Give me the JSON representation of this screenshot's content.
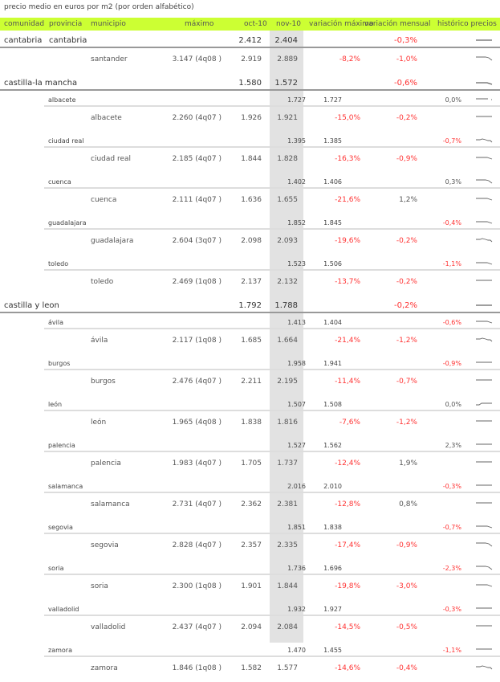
{
  "title": "precio medio en euros por m2 (por orden alfabético)",
  "colors": {
    "header_bg": "#ccff33",
    "negative": "#ff3333",
    "shade": "#e2e2e2"
  },
  "columns": {
    "comunidad": "comunidad",
    "provincia": "provincia",
    "municipio": "municipio",
    "maximo": "máximo",
    "oct": "oct-10",
    "nov": "nov-10",
    "var_max": "variación máximo",
    "var_mensual": "variación mensual",
    "historico": "histórico precios"
  },
  "rows": [
    {
      "type": "com",
      "comunidad": "cantabria",
      "provincia": "cantabria",
      "oct": "2.412",
      "nov": "2.404",
      "var_mensual": "-0,3%",
      "neg": true,
      "spark": "flat"
    },
    {
      "type": "mun",
      "municipio": "santander",
      "maximo": "3.147 (4q08 )",
      "oct": "2.919",
      "nov": "2.889",
      "var_max": "-8,2%",
      "var_mensual": "-1,0%",
      "neg": true,
      "spark": "down"
    },
    {
      "type": "com",
      "comunidad": "castilla-la mancha",
      "oct": "1.580",
      "nov": "1.572",
      "var_mensual": "-0,6%",
      "neg": true,
      "spark": "flatdown"
    },
    {
      "type": "prov",
      "provincia": "albacete",
      "oct": "1.727",
      "nov": "1.727",
      "var_mensual": "0,0%",
      "neg": false,
      "spark": "flatdot"
    },
    {
      "type": "mun",
      "municipio": "albacete",
      "maximo": "2.260 (4q07 )",
      "oct": "1.926",
      "nov": "1.921",
      "var_max": "-15,0%",
      "var_mensual": "-0,2%",
      "neg": true,
      "spark": "flat"
    },
    {
      "type": "prov",
      "provincia": "ciudad real",
      "oct": "1.395",
      "nov": "1.385",
      "var_mensual": "-0,7%",
      "neg": true,
      "spark": "wave"
    },
    {
      "type": "mun",
      "municipio": "ciudad real",
      "maximo": "2.185 (4q07 )",
      "oct": "1.844",
      "nov": "1.828",
      "var_max": "-16,3%",
      "var_mensual": "-0,9%",
      "neg": true,
      "spark": "flatdown"
    },
    {
      "type": "prov",
      "provincia": "cuenca",
      "oct": "1.402",
      "nov": "1.406",
      "var_mensual": "0,3%",
      "neg": false,
      "spark": "down"
    },
    {
      "type": "mun",
      "municipio": "cuenca",
      "maximo": "2.111 (4q07 )",
      "oct": "1.636",
      "nov": "1.655",
      "var_max": "-21,6%",
      "var_mensual": "1,2%",
      "neg": false,
      "spark": "flatdown"
    },
    {
      "type": "prov",
      "provincia": "guadalajara",
      "oct": "1.852",
      "nov": "1.845",
      "var_mensual": "-0,4%",
      "neg": true,
      "spark": "flatdown"
    },
    {
      "type": "mun",
      "municipio": "guadalajara",
      "maximo": "2.604 (3q07 )",
      "oct": "2.098",
      "nov": "2.093",
      "var_max": "-19,6%",
      "var_mensual": "-0,2%",
      "neg": true,
      "spark": "wave"
    },
    {
      "type": "prov",
      "provincia": "toledo",
      "oct": "1.523",
      "nov": "1.506",
      "var_mensual": "-1,1%",
      "neg": true,
      "spark": "flatdown"
    },
    {
      "type": "mun",
      "municipio": "toledo",
      "maximo": "2.469 (1q08 )",
      "oct": "2.137",
      "nov": "2.132",
      "var_max": "-13,7%",
      "var_mensual": "-0,2%",
      "neg": true,
      "spark": "flat"
    },
    {
      "type": "com",
      "comunidad": "castilla y leon",
      "oct": "1.792",
      "nov": "1.788",
      "var_mensual": "-0,2%",
      "neg": true,
      "spark": "flat"
    },
    {
      "type": "prov",
      "provincia": "ávila",
      "oct": "1.413",
      "nov": "1.404",
      "var_mensual": "-0,6%",
      "neg": true,
      "spark": "flatdown"
    },
    {
      "type": "mun",
      "municipio": "ávila",
      "maximo": "2.117 (1q08 )",
      "oct": "1.685",
      "nov": "1.664",
      "var_max": "-21,4%",
      "var_mensual": "-1,2%",
      "neg": true,
      "spark": "wave"
    },
    {
      "type": "prov",
      "provincia": "burgos",
      "oct": "1.958",
      "nov": "1.941",
      "var_mensual": "-0,9%",
      "neg": true,
      "spark": "flat"
    },
    {
      "type": "mun",
      "municipio": "burgos",
      "maximo": "2.476 (4q07 )",
      "oct": "2.211",
      "nov": "2.195",
      "var_max": "-11,4%",
      "var_mensual": "-0,7%",
      "neg": true,
      "spark": "flat"
    },
    {
      "type": "prov",
      "provincia": "león",
      "oct": "1.507",
      "nov": "1.508",
      "var_mensual": "0,0%",
      "neg": false,
      "spark": "up"
    },
    {
      "type": "mun",
      "municipio": "león",
      "maximo": "1.965 (4q08 )",
      "oct": "1.838",
      "nov": "1.816",
      "var_max": "-7,6%",
      "var_mensual": "-1,2%",
      "neg": true,
      "spark": "flat"
    },
    {
      "type": "prov",
      "provincia": "palencia",
      "oct": "1.527",
      "nov": "1.562",
      "var_mensual": "2,3%",
      "neg": false,
      "spark": "flat"
    },
    {
      "type": "mun",
      "municipio": "palencia",
      "maximo": "1.983 (4q07 )",
      "oct": "1.705",
      "nov": "1.737",
      "var_max": "-12,4%",
      "var_mensual": "1,9%",
      "neg": false,
      "spark": "flat"
    },
    {
      "type": "prov",
      "provincia": "salamanca",
      "oct": "2.016",
      "nov": "2.010",
      "var_mensual": "-0,3%",
      "neg": true,
      "spark": "flat"
    },
    {
      "type": "mun",
      "municipio": "salamanca",
      "maximo": "2.731 (4q07 )",
      "oct": "2.362",
      "nov": "2.381",
      "var_max": "-12,8%",
      "var_mensual": "0,8%",
      "neg": false,
      "spark": "flat"
    },
    {
      "type": "prov",
      "provincia": "segovia",
      "oct": "1.851",
      "nov": "1.838",
      "var_mensual": "-0,7%",
      "neg": true,
      "spark": "flatdown"
    },
    {
      "type": "mun",
      "municipio": "segovia",
      "maximo": "2.828 (4q07 )",
      "oct": "2.357",
      "nov": "2.335",
      "var_max": "-17,4%",
      "var_mensual": "-0,9%",
      "neg": true,
      "spark": "down"
    },
    {
      "type": "prov",
      "provincia": "soria",
      "oct": "1.736",
      "nov": "1.696",
      "var_mensual": "-2,3%",
      "neg": true,
      "spark": "down"
    },
    {
      "type": "mun",
      "municipio": "soria",
      "maximo": "2.300 (1q08 )",
      "oct": "1.901",
      "nov": "1.844",
      "var_max": "-19,8%",
      "var_mensual": "-3,0%",
      "neg": true,
      "spark": "flatdown"
    },
    {
      "type": "prov",
      "provincia": "valladolid",
      "oct": "1.932",
      "nov": "1.927",
      "var_mensual": "-0,3%",
      "neg": true,
      "spark": "flat"
    },
    {
      "type": "mun",
      "municipio": "valladolid",
      "maximo": "2.437 (4q07 )",
      "oct": "2.094",
      "nov": "2.084",
      "var_max": "-14,5%",
      "var_mensual": "-0,5%",
      "neg": true,
      "spark": "flat"
    },
    {
      "type": "prov",
      "provincia": "zamora",
      "oct": "1.470",
      "nov": "1.455",
      "var_mensual": "-1,1%",
      "neg": true,
      "spark": "flat"
    },
    {
      "type": "mun",
      "municipio": "zamora",
      "maximo": "1.846 (1q08 )",
      "oct": "1.582",
      "nov": "1.577",
      "var_max": "-14,6%",
      "var_mensual": "-0,4%",
      "neg": true,
      "spark": "wave"
    }
  ]
}
